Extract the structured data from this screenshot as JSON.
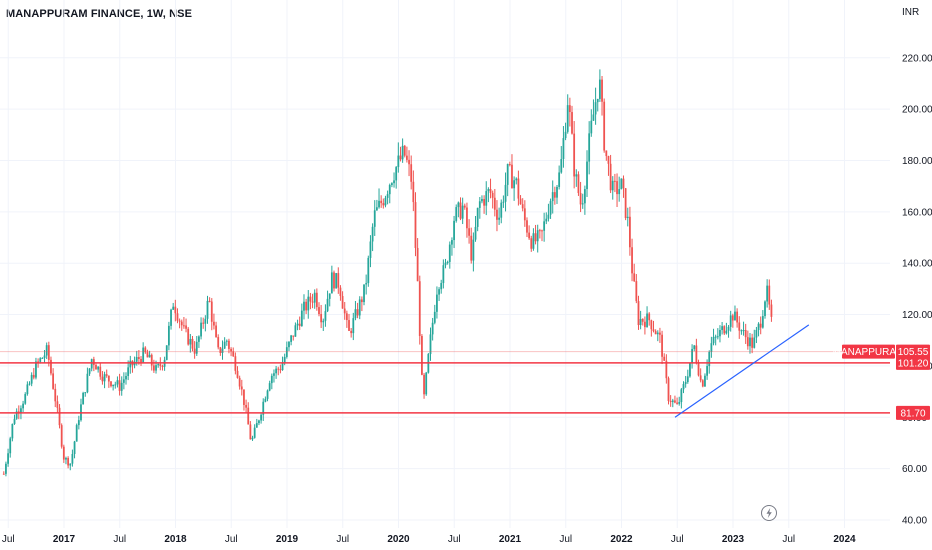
{
  "header": {
    "title": "MANAPPURAM FINANCE, 1W, NSE",
    "currency": "INR"
  },
  "colors": {
    "up": "#26a69a",
    "down": "#ef5350",
    "hline": "#f23645",
    "trendline": "#2962ff",
    "grid": "#f0f3fa",
    "axis_text": "#131722"
  },
  "chart_data": {
    "type": "candlestick",
    "title": "MANAPPURAM FINANCE, 1W, NSE",
    "y_unit": "INR",
    "ylim": [
      40,
      230
    ],
    "y_ticks": [
      "40.00",
      "60.00",
      "80.00",
      "100.00",
      "120.00",
      "140.00",
      "160.00",
      "180.00",
      "200.00",
      "220.00"
    ],
    "x_ticks": [
      {
        "label": "Jul",
        "t": 2016.5
      },
      {
        "label": "2017",
        "t": 2017.0
      },
      {
        "label": "Jul",
        "t": 2017.5
      },
      {
        "label": "2018",
        "t": 2018.0
      },
      {
        "label": "Jul",
        "t": 2018.5
      },
      {
        "label": "2019",
        "t": 2019.0
      },
      {
        "label": "Jul",
        "t": 2019.5
      },
      {
        "label": "2020",
        "t": 2020.0
      },
      {
        "label": "Jul",
        "t": 2020.5
      },
      {
        "label": "2021",
        "t": 2021.0
      },
      {
        "label": "Jul",
        "t": 2021.5
      },
      {
        "label": "2022",
        "t": 2022.0
      },
      {
        "label": "Jul",
        "t": 2022.5
      },
      {
        "label": "2023",
        "t": 2023.0
      },
      {
        "label": "Jul",
        "t": 2023.5
      },
      {
        "label": "2024",
        "t": 2024.0
      }
    ],
    "price_path": [
      [
        2016.46,
        58
      ],
      [
        2016.55,
        80
      ],
      [
        2016.65,
        88
      ],
      [
        2016.75,
        100
      ],
      [
        2016.85,
        106
      ],
      [
        2016.93,
        85
      ],
      [
        2017.0,
        64
      ],
      [
        2017.06,
        62
      ],
      [
        2017.14,
        82
      ],
      [
        2017.25,
        103
      ],
      [
        2017.35,
        96
      ],
      [
        2017.5,
        92
      ],
      [
        2017.6,
        100
      ],
      [
        2017.72,
        105
      ],
      [
        2017.83,
        98
      ],
      [
        2017.9,
        103
      ],
      [
        2017.98,
        125
      ],
      [
        2018.08,
        113
      ],
      [
        2018.18,
        106
      ],
      [
        2018.3,
        126
      ],
      [
        2018.38,
        105
      ],
      [
        2018.46,
        110
      ],
      [
        2018.55,
        99
      ],
      [
        2018.62,
        85
      ],
      [
        2018.68,
        70
      ],
      [
        2018.75,
        80
      ],
      [
        2018.85,
        96
      ],
      [
        2018.95,
        100
      ],
      [
        2019.05,
        112
      ],
      [
        2019.15,
        122
      ],
      [
        2019.25,
        128
      ],
      [
        2019.32,
        118
      ],
      [
        2019.4,
        134
      ],
      [
        2019.47,
        132
      ],
      [
        2019.55,
        112
      ],
      [
        2019.62,
        120
      ],
      [
        2019.7,
        130
      ],
      [
        2019.78,
        158
      ],
      [
        2019.86,
        165
      ],
      [
        2019.95,
        175
      ],
      [
        2020.05,
        183
      ],
      [
        2020.12,
        172
      ],
      [
        2020.18,
        125
      ],
      [
        2020.22,
        84
      ],
      [
        2020.28,
        108
      ],
      [
        2020.35,
        132
      ],
      [
        2020.42,
        138
      ],
      [
        2020.5,
        158
      ],
      [
        2020.58,
        162
      ],
      [
        2020.66,
        142
      ],
      [
        2020.72,
        163
      ],
      [
        2020.82,
        168
      ],
      [
        2020.9,
        158
      ],
      [
        2020.98,
        175
      ],
      [
        2021.05,
        172
      ],
      [
        2021.12,
        158
      ],
      [
        2021.2,
        148
      ],
      [
        2021.28,
        150
      ],
      [
        2021.36,
        165
      ],
      [
        2021.45,
        175
      ],
      [
        2021.52,
        205
      ],
      [
        2021.58,
        175
      ],
      [
        2021.64,
        162
      ],
      [
        2021.72,
        190
      ],
      [
        2021.8,
        212
      ],
      [
        2021.85,
        185
      ],
      [
        2021.92,
        168
      ],
      [
        2022.0,
        170
      ],
      [
        2022.06,
        155
      ],
      [
        2022.1,
        135
      ],
      [
        2022.15,
        118
      ],
      [
        2022.25,
        118
      ],
      [
        2022.35,
        110
      ],
      [
        2022.42,
        88
      ],
      [
        2022.5,
        84
      ],
      [
        2022.58,
        95
      ],
      [
        2022.65,
        108
      ],
      [
        2022.72,
        92
      ],
      [
        2022.8,
        108
      ],
      [
        2022.92,
        115
      ],
      [
        2023.0,
        120
      ],
      [
        2023.1,
        112
      ],
      [
        2023.18,
        108
      ],
      [
        2023.25,
        118
      ],
      [
        2023.3,
        130
      ],
      [
        2023.36,
        112
      ]
    ],
    "horizontal_lines": [
      {
        "value": 101.2,
        "label": "101.20"
      },
      {
        "value": 81.7,
        "label": "81.70"
      }
    ],
    "trendline": {
      "from": [
        2022.48,
        80
      ],
      "to": [
        2023.68,
        116
      ]
    },
    "current_price": {
      "symbol": "MANAPPURAM",
      "value": 105.55,
      "label": "105.55"
    }
  }
}
